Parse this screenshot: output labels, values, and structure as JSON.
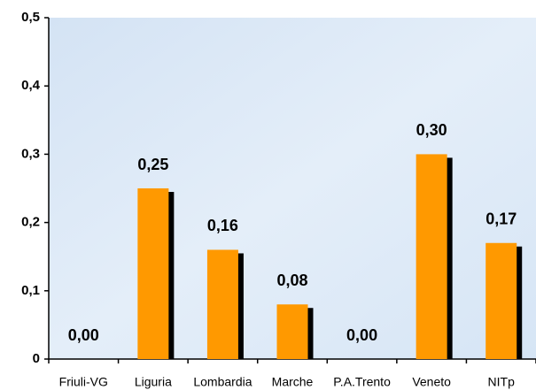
{
  "chart_data": {
    "type": "bar",
    "categories": [
      "Friuli-VG",
      "Liguria",
      "Lombardia",
      "Marche",
      "P.A.Trento",
      "Veneto",
      "NITp"
    ],
    "values": [
      0,
      0.25,
      0.16,
      0.08,
      0,
      0.3,
      0.17
    ],
    "value_labels": [
      "0,00",
      "0,25",
      "0,16",
      "0,08",
      "0,00",
      "0,30",
      "0,17"
    ],
    "color": "#ff9900",
    "ylim": [
      0,
      0.5
    ],
    "yticks": [
      0,
      {
        "value": 0.1,
        "label": "0,1"
      },
      {
        "value": 0.2,
        "label": "0,2"
      },
      {
        "value": 0.3,
        "label": "0,3"
      },
      {
        "value": 0.4,
        "label": "0,4"
      },
      {
        "value": 0.5,
        "label": "0,5"
      }
    ]
  }
}
